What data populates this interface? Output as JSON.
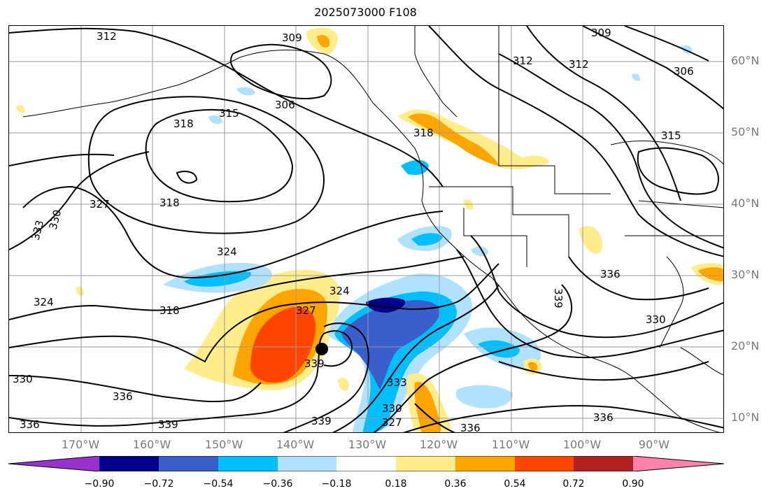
{
  "title": "2025073000 F108",
  "lat_labels": [
    "60°N",
    "50°N",
    "40°N",
    "30°N",
    "20°N",
    "10°N"
  ],
  "lon_labels": [
    "170°W",
    "160°W",
    "150°W",
    "140°W",
    "130°W",
    "120°W",
    "110°W",
    "100°W",
    "90°W"
  ],
  "colorbar": {
    "ticks": [
      "−0.90",
      "−0.72",
      "−0.54",
      "−0.36",
      "−0.18",
      "0.18",
      "0.36",
      "0.54",
      "0.72",
      "0.90"
    ],
    "colors": [
      "#9932cc",
      "#00008b",
      "#3a5fcd",
      "#00bfff",
      "#b0e2ff",
      "#ffffff",
      "#ffec8b",
      "#ffa500",
      "#ff4500",
      "#b22222",
      "#ff82ab"
    ]
  },
  "contour_labels": [
    "312",
    "309",
    "306",
    "315",
    "318",
    "327",
    "333",
    "330",
    "324",
    "318",
    "324",
    "318",
    "327",
    "324",
    "339",
    "333",
    "330",
    "327",
    "336",
    "339",
    "339",
    "336",
    "330",
    "336",
    "318",
    "312",
    "309",
    "306",
    "315",
    "312",
    "336",
    "339",
    "330",
    "336"
  ],
  "storm_center": "black-dot"
}
